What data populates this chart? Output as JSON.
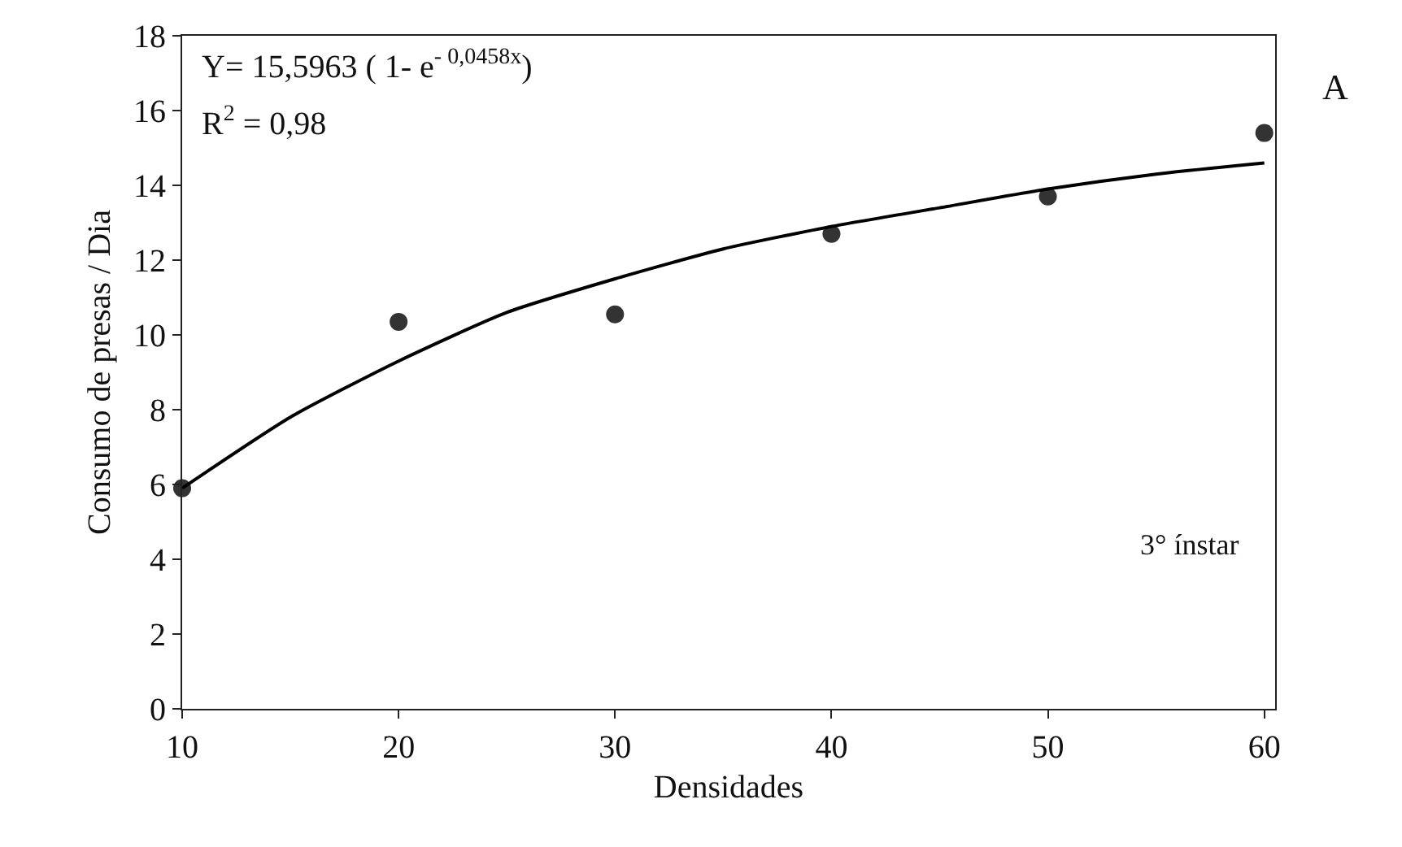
{
  "chart_data": {
    "type": "scatter",
    "xlabel": "Densidades",
    "ylabel": "Consumo de presas / Dia",
    "x": [
      10,
      20,
      30,
      40,
      50,
      60
    ],
    "series": [
      {
        "color": "#333333",
        "marker": "circle",
        "values": [
          5.9,
          10.35,
          10.55,
          12.7,
          13.7,
          15.4
        ]
      },
      {
        "type": "line",
        "color": "#000000",
        "marker": "none",
        "line_style": "solid",
        "x": [
          10,
          15,
          20,
          25,
          30,
          35,
          40,
          45,
          50,
          55,
          60
        ],
        "values": [
          5.9,
          7.8,
          9.3,
          10.6,
          11.5,
          12.3,
          12.9,
          13.4,
          13.9,
          14.3,
          14.6
        ]
      }
    ],
    "xlim": [
      10,
      60.5
    ],
    "ylim": [
      0,
      18
    ],
    "xticks": [
      10,
      20,
      30,
      40,
      50,
      60
    ],
    "yticks": [
      0,
      2,
      4,
      6,
      8,
      10,
      12,
      14,
      16,
      18
    ],
    "grid": false,
    "annotations": [
      "Y= 15,5963 ( 1- e$^{- 0,0458x}$)",
      "R$^{2}$ = 0,98",
      "A",
      "3° ínstar"
    ]
  }
}
